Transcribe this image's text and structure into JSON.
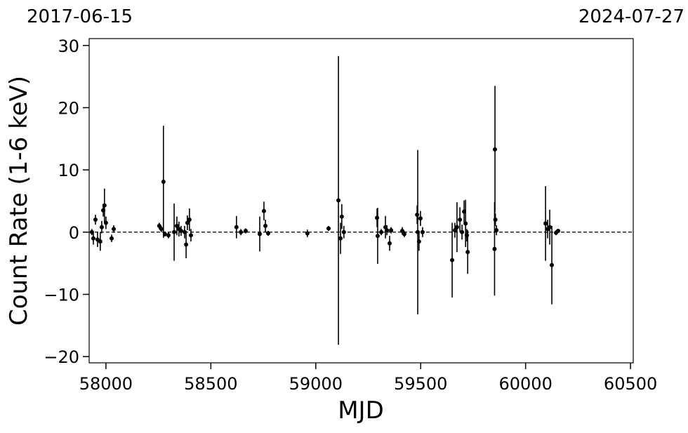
{
  "chart_data": {
    "type": "errorbar",
    "top_left_label": "2017-06-15",
    "top_right_label": "2024-07-27",
    "xlabel": "MJD",
    "ylabel": "Count Rate (1-6 keV)",
    "xlim": [
      57920,
      60513
    ],
    "ylim": [
      -21.0,
      31.1
    ],
    "xticks": [
      58000,
      58500,
      59000,
      59500,
      60000,
      60500
    ],
    "yticks": [
      {
        "value": -20,
        "label": "−20"
      },
      {
        "value": -10,
        "label": "−10"
      },
      0,
      10,
      20,
      30
    ],
    "hline": 0,
    "color": "#000000",
    "x": [
      57933,
      57940,
      57950,
      57960,
      57973,
      57980,
      57987,
      57993,
      58000,
      58027,
      58037,
      58254,
      58264,
      58274,
      58281,
      58298,
      58325,
      58338,
      58348,
      58358,
      58375,
      58382,
      58388,
      58398,
      58405,
      58622,
      58643,
      58666,
      58733,
      58753,
      58760,
      58773,
      58960,
      59061,
      59108,
      59118,
      59124,
      59134,
      59292,
      59295,
      59312,
      59332,
      59339,
      59352,
      59359,
      59412,
      59422,
      59483,
      59486,
      59492,
      59499,
      59509,
      59650,
      59663,
      59673,
      59687,
      59697,
      59707,
      59714,
      59720,
      59724,
      59854,
      59856,
      59852,
      59861,
      60095,
      60105,
      60115,
      60125,
      60145,
      60155
    ],
    "y": [
      0.0,
      -1.0,
      2.0,
      -1.2,
      -1.5,
      0.8,
      3.5,
      4.3,
      1.5,
      -1.0,
      0.5,
      1.0,
      0.5,
      8.1,
      -0.3,
      -0.5,
      0.0,
      1.0,
      0.5,
      0.2,
      0.0,
      -2.0,
      1.5,
      2.0,
      -0.5,
      0.8,
      0.0,
      0.2,
      -0.3,
      3.4,
      1.0,
      -0.2,
      -0.2,
      0.6,
      5.1,
      -1.0,
      2.5,
      0.0,
      2.3,
      -0.6,
      0.0,
      0.8,
      0.3,
      -1.8,
      0.3,
      0.2,
      -0.3,
      2.8,
      0.0,
      -1.5,
      2.2,
      0.0,
      -4.5,
      0.3,
      0.8,
      2.0,
      0.0,
      3.3,
      1.4,
      -0.5,
      -3.2,
      13.3,
      2.0,
      -2.7,
      0.3,
      1.4,
      0.5,
      0.8,
      -5.3,
      -0.1,
      0.2
    ],
    "err": [
      0.5,
      1.0,
      0.8,
      1.2,
      1.5,
      1.0,
      1.0,
      2.7,
      1.0,
      0.6,
      0.6,
      0.5,
      0.5,
      9.0,
      0.4,
      0.5,
      4.6,
      1.5,
      1.2,
      0.8,
      1.0,
      2.2,
      1.2,
      1.8,
      1.0,
      1.8,
      0.5,
      0.4,
      2.8,
      1.5,
      1.0,
      0.4,
      0.6,
      0.4,
      23.2,
      2.5,
      2.0,
      1.0,
      1.5,
      4.5,
      0.5,
      1.8,
      0.8,
      1.2,
      0.5,
      0.6,
      0.5,
      1.5,
      13.2,
      1.5,
      1.2,
      0.8,
      6.0,
      1.2,
      4.0,
      2.0,
      1.2,
      1.8,
      3.8,
      1.0,
      3.5,
      10.2,
      1.0,
      7.5,
      0.8,
      6.0,
      1.5,
      2.8,
      6.3,
      0.4,
      0.3
    ]
  }
}
